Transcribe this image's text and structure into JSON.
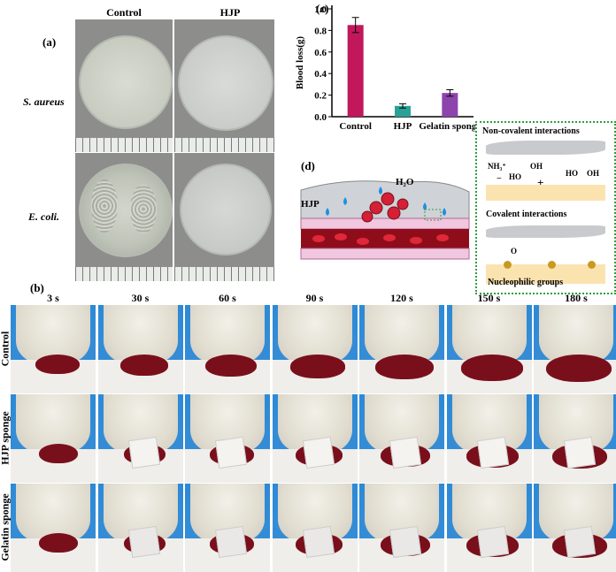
{
  "panel_a": {
    "label": "(a)",
    "columns": [
      "Control",
      "HJP"
    ],
    "rows": [
      "S. aureus",
      "E. coli."
    ]
  },
  "panel_b": {
    "label": "(b)",
    "times": [
      "3 s",
      "30 s",
      "60 s",
      "90 s",
      "120 s",
      "150 s",
      "180 s"
    ],
    "rows": [
      "Control",
      "HJP sponge",
      "Gelatin sponge"
    ]
  },
  "panel_c": {
    "label": "(c)"
  },
  "panel_d": {
    "label": "(d)",
    "hjp_label": "HJP",
    "water_label": "H₂O",
    "noncovalent_title": "Non-covalent interactions",
    "covalent_title": "Covalent interactions",
    "nucleophilic_label": "Nucleophilic groups",
    "chem": {
      "nh3": "NH₃⁺",
      "minus": "−",
      "plus": "+",
      "ho1": "HO",
      "oh1": "OH",
      "ho2": "HO",
      "oh2": "OH",
      "o": "O"
    }
  },
  "chart_data": {
    "type": "bar",
    "categories": [
      "Control",
      "HJP",
      "Gelatin sponge"
    ],
    "values": [
      0.85,
      0.1,
      0.22
    ],
    "errors": [
      0.07,
      0.02,
      0.03
    ],
    "ylabel": "Blood loss(g)",
    "ylim": [
      0,
      1.0
    ],
    "yticks": [
      "0.0",
      "0.2",
      "0.4",
      "0.6",
      "0.8",
      "1.0"
    ],
    "grid": false,
    "colors": [
      "#c2185b",
      "#2aa198",
      "#8e44ad"
    ]
  }
}
